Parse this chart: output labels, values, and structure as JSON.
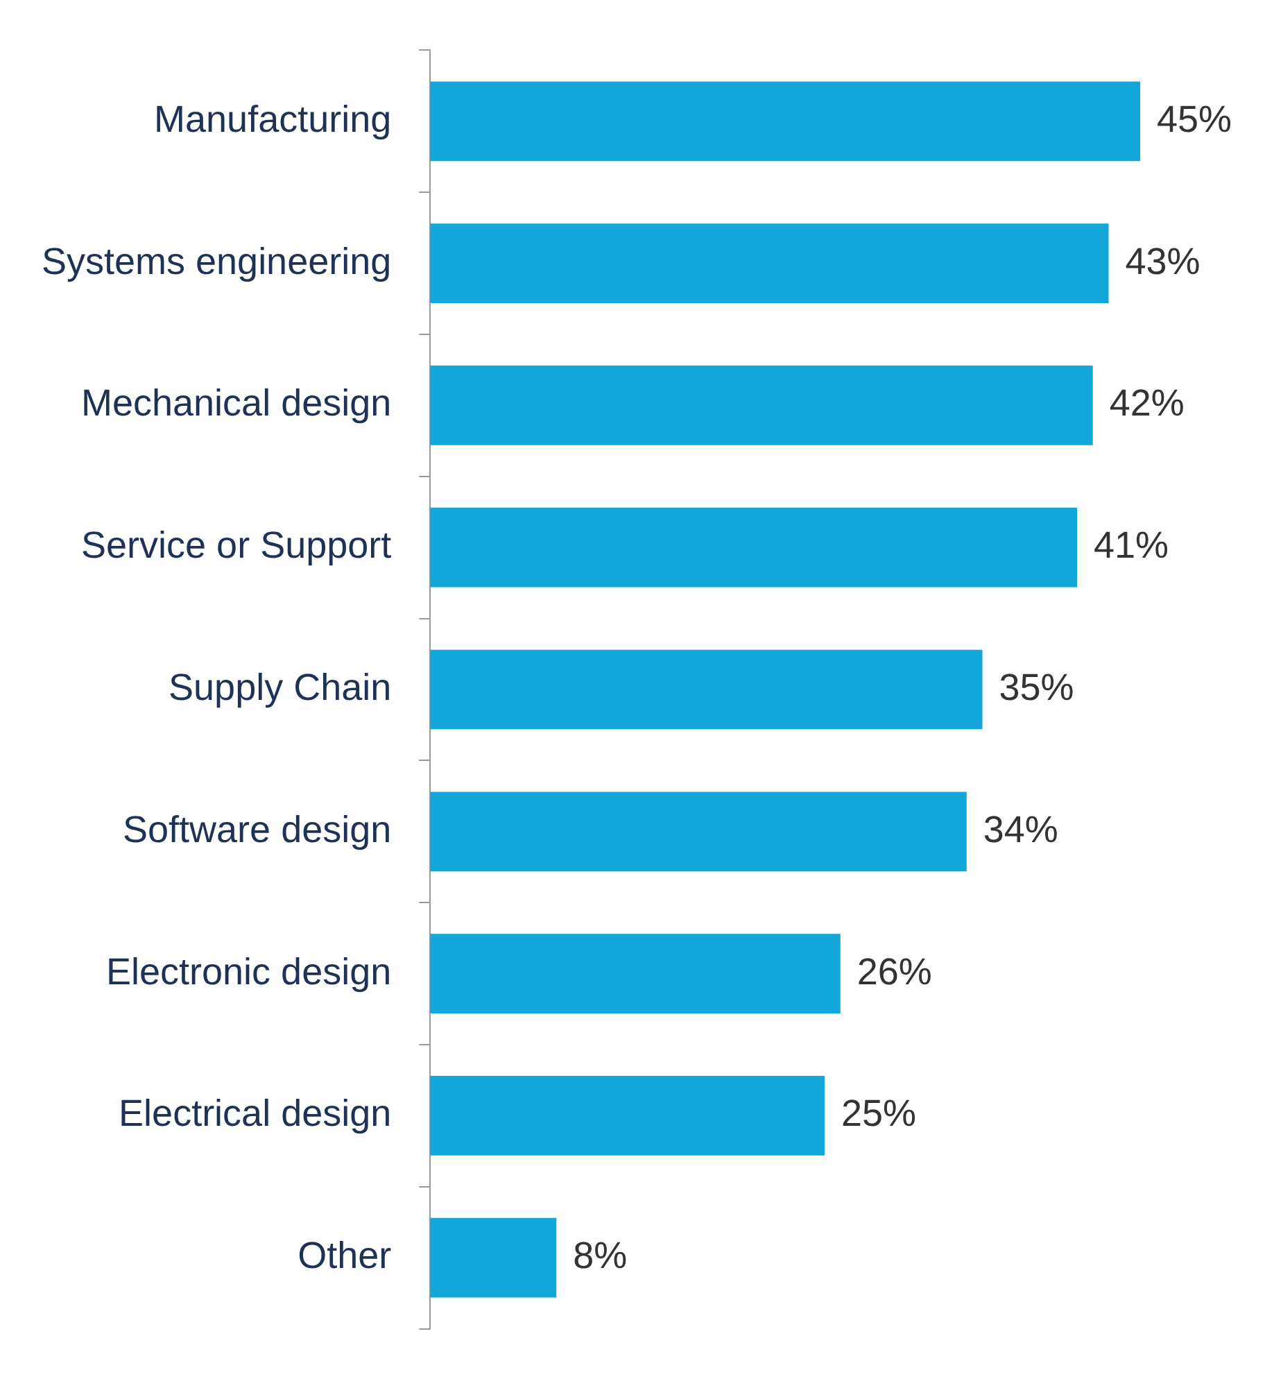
{
  "chart_data": {
    "type": "bar",
    "orientation": "horizontal",
    "categories": [
      "Manufacturing",
      "Systems engineering",
      "Mechanical design",
      "Service or Support",
      "Supply Chain",
      "Software design",
      "Electronic design",
      "Electrical design",
      "Other"
    ],
    "values": [
      45,
      43,
      42,
      41,
      35,
      34,
      26,
      25,
      8
    ],
    "value_labels": [
      "45%",
      "43%",
      "42%",
      "41%",
      "35%",
      "34%",
      "26%",
      "25%",
      "8%"
    ],
    "color": "#12a6d9"
  }
}
